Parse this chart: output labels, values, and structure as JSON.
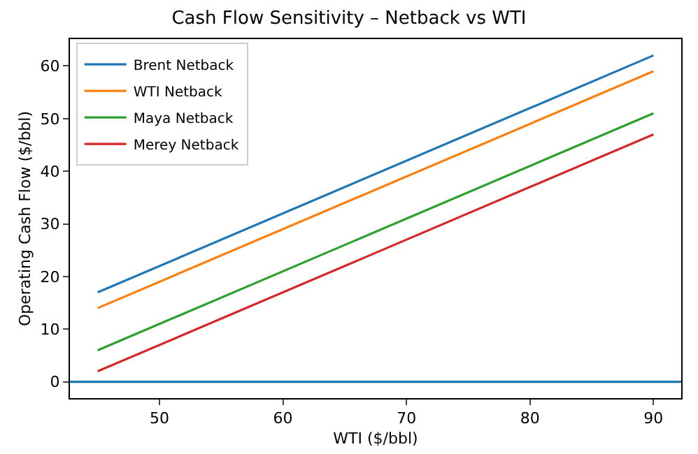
{
  "chart_data": {
    "type": "line",
    "title": "Cash Flow Sensitivity – Netback vs WTI",
    "xlabel": "WTI ($/bbl)",
    "ylabel": "Operating Cash Flow ($/bbl)",
    "x": [
      45,
      90
    ],
    "series": [
      {
        "name": "Brent Netback",
        "color": "#1f77b4",
        "values": [
          17,
          62
        ]
      },
      {
        "name": "WTI Netback",
        "color": "#ff7f0e",
        "values": [
          14,
          59
        ]
      },
      {
        "name": "Maya Netback",
        "color": "#2ca02c",
        "values": [
          6,
          51
        ]
      },
      {
        "name": "Merey Netback",
        "color": "#d62728",
        "values": [
          2,
          47
        ]
      }
    ],
    "xlim": [
      42.75,
      92.25
    ],
    "xticks": [
      50,
      60,
      70,
      80,
      90
    ],
    "ylim": [
      -3.1,
      65.1
    ],
    "yticks": [
      0,
      10,
      20,
      30,
      40,
      50,
      60
    ],
    "ref_lines": [
      {
        "axis": "y",
        "value": 0,
        "color": "#1f77b4",
        "line_style": "solid"
      }
    ],
    "grid": false,
    "legend": "top left",
    "marker": "none",
    "line_style": "solid"
  }
}
